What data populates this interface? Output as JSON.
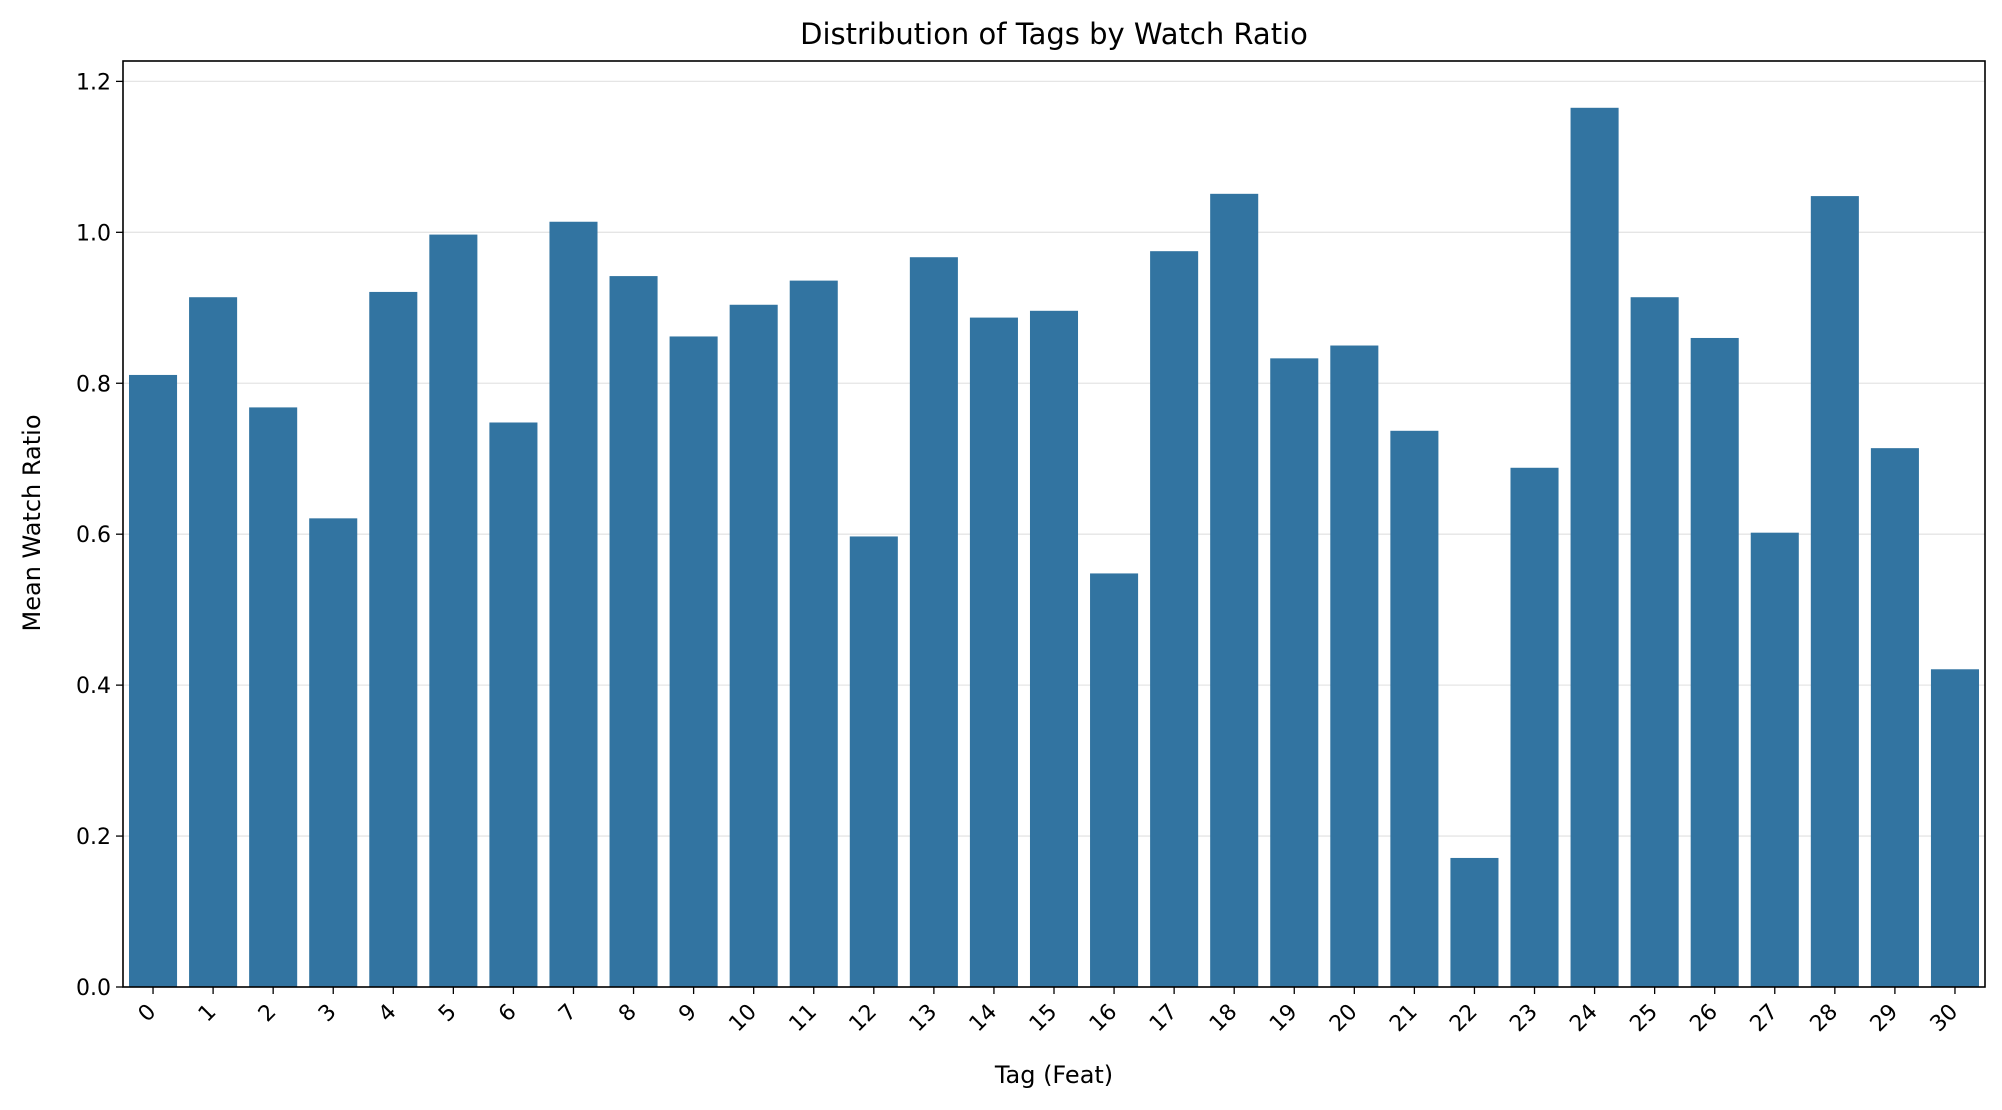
{
  "chart_data": {
    "type": "bar",
    "title": "Distribution of Tags by Watch Ratio",
    "xlabel": "Tag (Feat)",
    "ylabel": "Mean Watch Ratio",
    "categories": [
      "0",
      "1",
      "2",
      "3",
      "4",
      "5",
      "6",
      "7",
      "8",
      "9",
      "10",
      "11",
      "12",
      "13",
      "14",
      "15",
      "16",
      "17",
      "18",
      "19",
      "20",
      "21",
      "22",
      "23",
      "24",
      "25",
      "26",
      "27",
      "28",
      "29",
      "30"
    ],
    "values": [
      0.811,
      0.914,
      0.768,
      0.621,
      0.921,
      0.997,
      0.748,
      1.014,
      0.942,
      0.862,
      0.904,
      0.936,
      0.597,
      0.967,
      0.887,
      0.896,
      0.548,
      0.975,
      1.051,
      0.833,
      0.85,
      0.737,
      0.171,
      0.688,
      1.165,
      0.914,
      0.86,
      0.602,
      1.048,
      0.714,
      0.421
    ],
    "ylim": [
      0,
      1.227
    ],
    "yticks": [
      "0.0",
      "0.2",
      "0.4",
      "0.6",
      "0.8",
      "1.0",
      "1.2"
    ],
    "grid": "y",
    "legend": "none",
    "bar_color": "#3274a1"
  }
}
